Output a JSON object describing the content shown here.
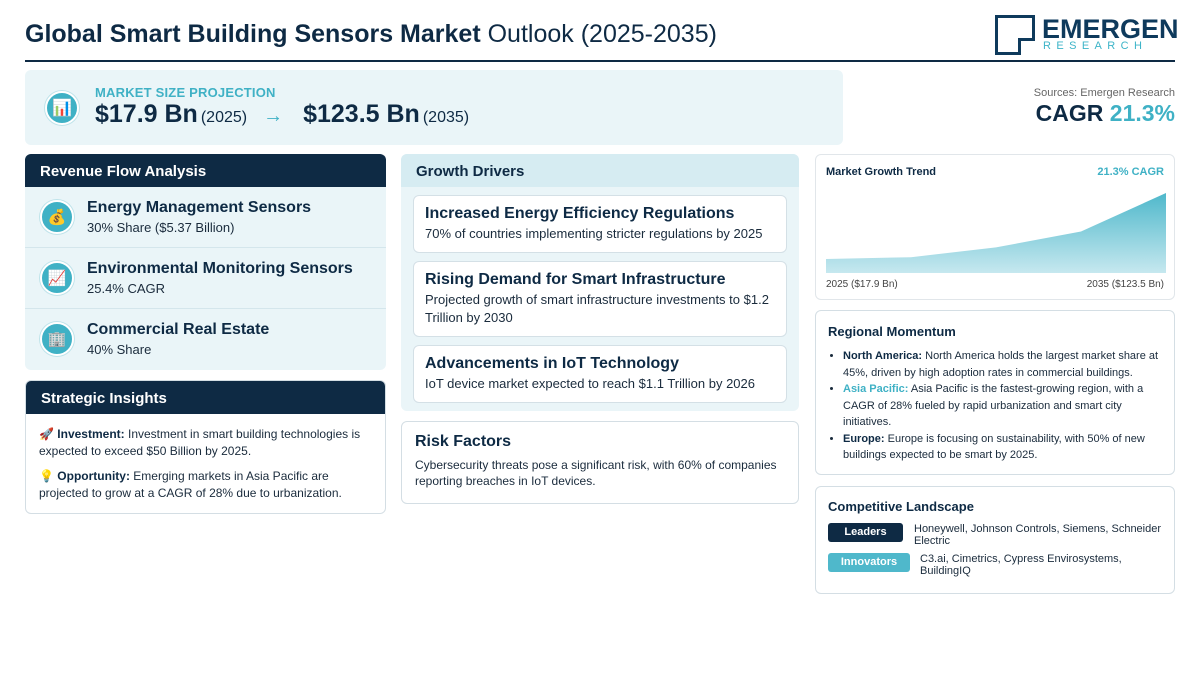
{
  "header": {
    "title_bold": "Global Smart Building Sensors Market",
    "title_rest": "Outlook (2025-2035)",
    "logo_main": "EMERGEN",
    "logo_sub": "RESEARCH"
  },
  "projection": {
    "label": "MARKET SIZE PROJECTION",
    "start_value": "$17.9 Bn",
    "start_year": "(2025)",
    "arrow": "→",
    "end_value": "$123.5 Bn",
    "end_year": "(2035)",
    "icon": "bar-chart-icon"
  },
  "summary": {
    "sources": "Sources: Emergen Research",
    "cagr_label": "CAGR",
    "cagr_value": "21.3%"
  },
  "revenue": {
    "title": "Revenue Flow Analysis",
    "items": [
      {
        "icon": "money-bag-icon",
        "glyph": "💰",
        "name": "Energy Management Sensors",
        "detail": "30% Share ($5.37 Billion)"
      },
      {
        "icon": "trend-chart-icon",
        "glyph": "📈",
        "name": "Environmental Monitoring Sensors",
        "detail": "25.4% CAGR"
      },
      {
        "icon": "building-icon",
        "glyph": "🏢",
        "name": "Commercial Real Estate",
        "detail": "40% Share"
      }
    ]
  },
  "insights": {
    "title": "Strategic Insights",
    "items": [
      {
        "glyph": "🚀",
        "label": "Investment:",
        "text": "Investment in smart building technologies is expected to exceed $50 Billion by 2025."
      },
      {
        "glyph": "💡",
        "label": "Opportunity:",
        "text": "Emerging markets in Asia Pacific are projected to grow at a CAGR of 28% due to urbanization."
      }
    ]
  },
  "drivers": {
    "title": "Growth Drivers",
    "items": [
      {
        "title": "Increased Energy Efficiency Regulations",
        "text": "70% of countries implementing stricter regulations by 2025"
      },
      {
        "title": "Rising Demand for Smart Infrastructure",
        "text": "Projected growth of smart infrastructure investments to $1.2 Trillion by 2030"
      },
      {
        "title": "Advancements in IoT Technology",
        "text": "IoT device market expected to reach $1.1 Trillion by 2026"
      }
    ]
  },
  "risk": {
    "title": "Risk Factors",
    "text": "Cybersecurity threats pose a significant risk, with 60% of companies reporting breaches in IoT devices."
  },
  "trend": {
    "title": "Market Growth Trend",
    "cagr": "21.3% CAGR",
    "start_label": "2025 ($17.9 Bn)",
    "end_label": "2035 ($123.5 Bn)",
    "colors": {
      "top": "#4fb8cb",
      "bottom": "#c6e8ef"
    }
  },
  "chart_data": {
    "type": "area",
    "x": [
      2025,
      2035
    ],
    "values": [
      17.9,
      123.5
    ],
    "title": "Market Growth Trend",
    "annotation": "21.3% CAGR",
    "tick_labels": [
      "2025 ($17.9 Bn)",
      "2035 ($123.5 Bn)"
    ]
  },
  "regional": {
    "title": "Regional Momentum",
    "items": [
      {
        "label": "North America:",
        "text": "North America holds the largest market share at 45%, driven by high adoption rates in commercial buildings.",
        "accent": false
      },
      {
        "label": "Asia Pacific:",
        "text": "Asia Pacific is the fastest-growing region, with a CAGR of 28% fueled by rapid urbanization and smart city initiatives.",
        "accent": true
      },
      {
        "label": "Europe:",
        "text": "Europe is focusing on sustainability, with 50% of new buildings expected to be smart by 2025.",
        "accent": false
      }
    ]
  },
  "competitive": {
    "title": "Competitive Landscape",
    "leaders_label": "Leaders",
    "leaders": "Honeywell, Johnson Controls, Siemens, Schneider Electric",
    "innovators_label": "Innovators",
    "innovators": "C3.ai, Cimetrics, Cypress Envirosystems, BuildingIQ"
  },
  "colors": {
    "navy": "#0e2a44",
    "teal": "#3fb1c5",
    "panel": "#eaf5f8"
  }
}
